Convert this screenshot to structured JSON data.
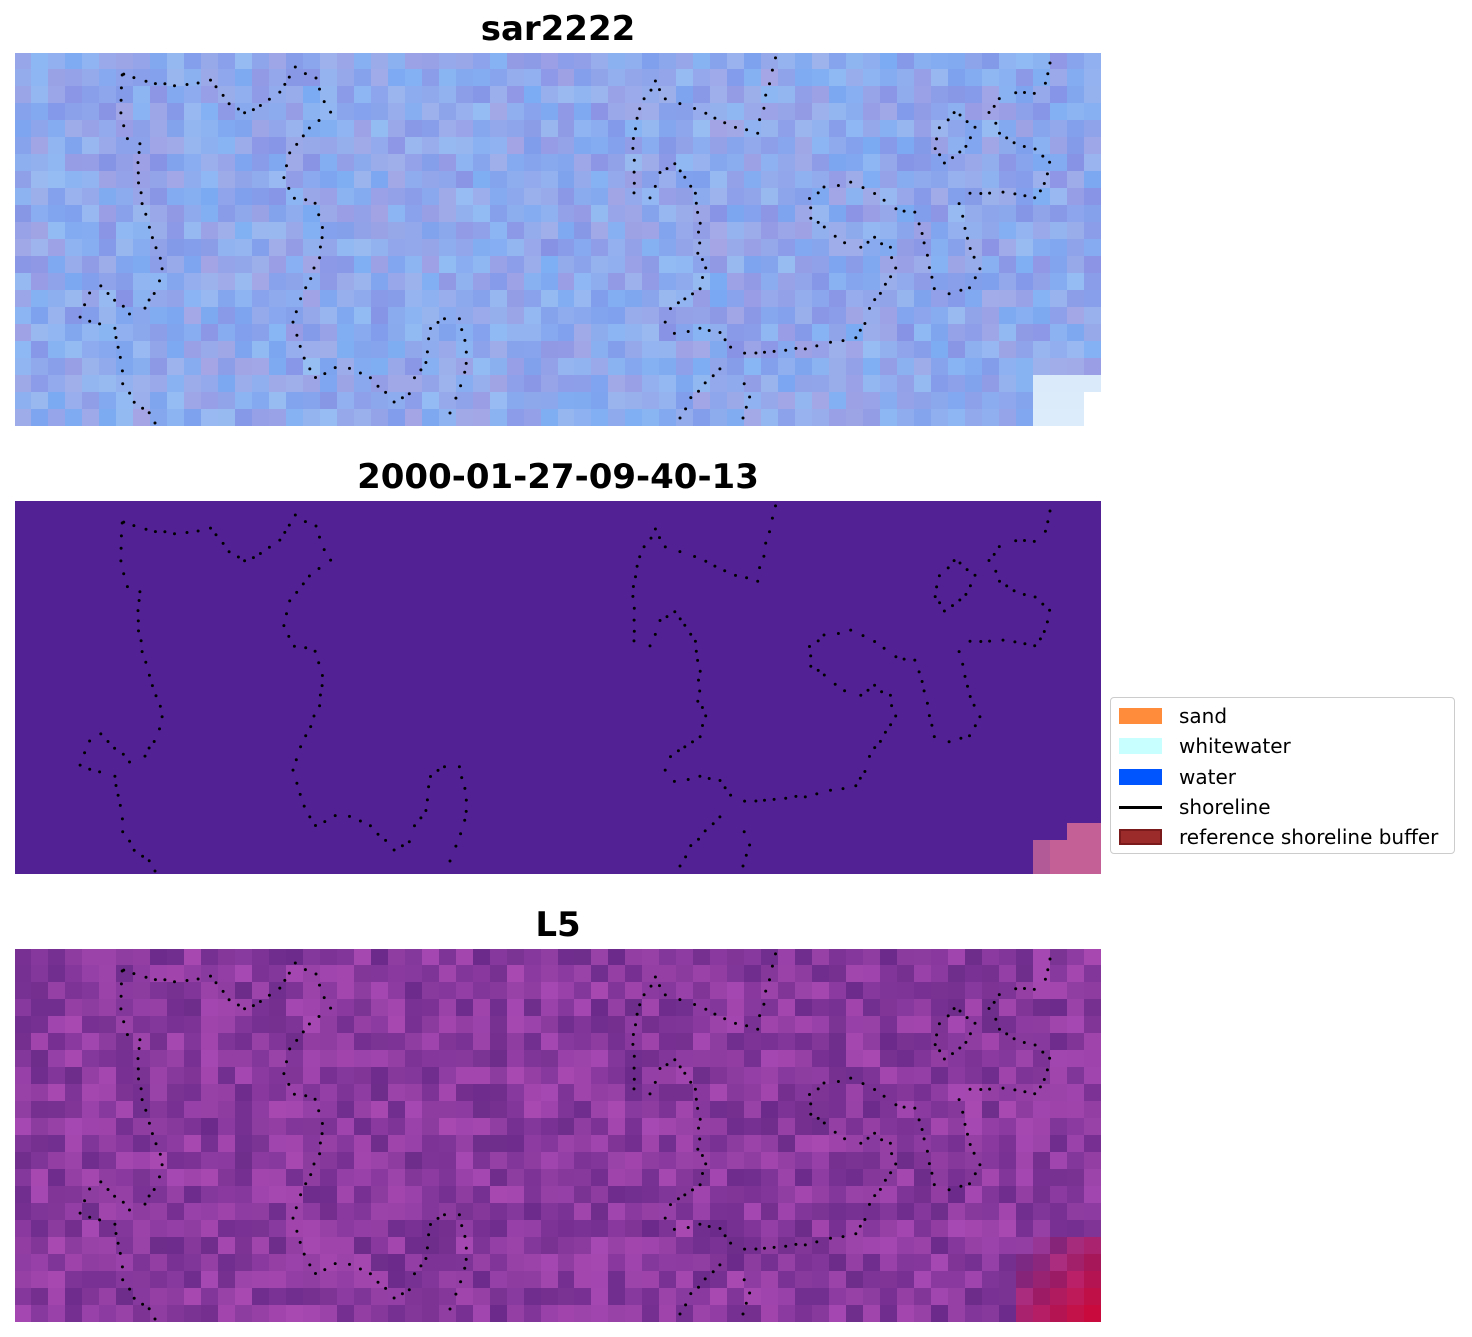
{
  "panels": [
    {
      "title": "sar2222",
      "palette": "sar"
    },
    {
      "title": "2000-01-27-09-40-13",
      "palette": "classified"
    },
    {
      "title": "L5",
      "palette": "l5"
    }
  ],
  "legend": {
    "items": [
      {
        "label": "sand",
        "color": "#ff8c3a",
        "kind": "patch"
      },
      {
        "label": "whitewater",
        "color": "#c8ffff",
        "kind": "patch"
      },
      {
        "label": "water",
        "color": "#0055ff",
        "kind": "patch"
      },
      {
        "label": "shoreline",
        "color": "#000000",
        "kind": "line"
      },
      {
        "label": "reference shoreline buffer",
        "color": "#9b2b2b",
        "kind": "patch-edged"
      }
    ]
  },
  "colors": {
    "sar_base": "#8fa8ec",
    "classified_base": "#522295",
    "l5_base": "#8a3a9e",
    "shoreline_dots": "#000000"
  }
}
